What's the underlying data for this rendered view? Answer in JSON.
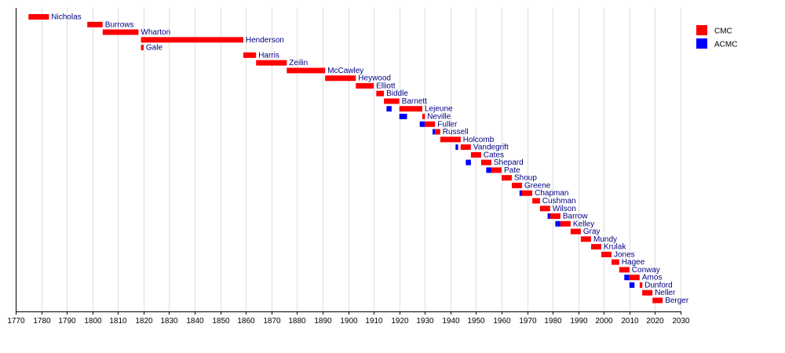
{
  "chart_data": {
    "type": "bar",
    "orientation": "horizontal-timeline",
    "title": "",
    "xlabel": "",
    "ylabel": "",
    "xlim": [
      1770,
      2030
    ],
    "x_ticks": [
      1770,
      1780,
      1790,
      1800,
      1810,
      1820,
      1830,
      1840,
      1850,
      1860,
      1870,
      1880,
      1890,
      1900,
      1910,
      1920,
      1930,
      1940,
      1950,
      1960,
      1970,
      1980,
      1990,
      2000,
      2010,
      2020,
      2030
    ],
    "grid": "vertical",
    "legend_position": "top-right",
    "series": [
      {
        "name": "CMC",
        "color": "#ff0000"
      },
      {
        "name": "ACMC",
        "color": "#0000ff"
      }
    ],
    "rows": [
      {
        "label": "Nicholas",
        "segments": [
          {
            "series": "CMC",
            "start": 1775,
            "end": 1783
          }
        ]
      },
      {
        "label": "Burrows",
        "segments": [
          {
            "series": "CMC",
            "start": 1798,
            "end": 1804
          }
        ]
      },
      {
        "label": "Wharton",
        "segments": [
          {
            "series": "CMC",
            "start": 1804,
            "end": 1818
          }
        ]
      },
      {
        "label": "Henderson",
        "segments": [
          {
            "series": "CMC",
            "start": 1819,
            "end": 1820
          },
          {
            "series": "CMC",
            "start": 1820,
            "end": 1859
          }
        ]
      },
      {
        "label": "Gale",
        "segments": [
          {
            "series": "CMC",
            "start": 1819,
            "end": 1820
          }
        ]
      },
      {
        "label": "Harris",
        "segments": [
          {
            "series": "CMC",
            "start": 1859,
            "end": 1864
          }
        ]
      },
      {
        "label": "Zeilin",
        "segments": [
          {
            "series": "CMC",
            "start": 1864,
            "end": 1876
          }
        ]
      },
      {
        "label": "McCawley",
        "segments": [
          {
            "series": "CMC",
            "start": 1876,
            "end": 1891
          }
        ]
      },
      {
        "label": "Heywood",
        "segments": [
          {
            "series": "CMC",
            "start": 1891,
            "end": 1903
          }
        ]
      },
      {
        "label": "Elliott",
        "segments": [
          {
            "series": "CMC",
            "start": 1903,
            "end": 1910
          }
        ]
      },
      {
        "label": "Biddle",
        "segments": [
          {
            "series": "CMC",
            "start": 1911,
            "end": 1914
          }
        ]
      },
      {
        "label": "Barnett",
        "segments": [
          {
            "series": "CMC",
            "start": 1914,
            "end": 1920
          }
        ]
      },
      {
        "label": "Lejeune",
        "segments": [
          {
            "series": "ACMC",
            "start": 1915,
            "end": 1917
          },
          {
            "series": "CMC",
            "start": 1920,
            "end": 1929
          }
        ]
      },
      {
        "label": "Neville",
        "segments": [
          {
            "series": "ACMC",
            "start": 1920,
            "end": 1923
          },
          {
            "series": "CMC",
            "start": 1929,
            "end": 1930
          }
        ]
      },
      {
        "label": "Fuller",
        "segments": [
          {
            "series": "ACMC",
            "start": 1928,
            "end": 1930
          },
          {
            "series": "CMC",
            "start": 1930,
            "end": 1934
          }
        ]
      },
      {
        "label": "Russell",
        "segments": [
          {
            "series": "ACMC",
            "start": 1933,
            "end": 1934
          },
          {
            "series": "CMC",
            "start": 1934,
            "end": 1936
          }
        ]
      },
      {
        "label": "Holcomb",
        "segments": [
          {
            "series": "CMC",
            "start": 1936,
            "end": 1944
          }
        ]
      },
      {
        "label": "Vandegrift",
        "segments": [
          {
            "series": "ACMC",
            "start": 1942,
            "end": 1943
          },
          {
            "series": "CMC",
            "start": 1944,
            "end": 1948
          }
        ]
      },
      {
        "label": "Cates",
        "segments": [
          {
            "series": "CMC",
            "start": 1948,
            "end": 1952
          }
        ]
      },
      {
        "label": "Shepard",
        "segments": [
          {
            "series": "ACMC",
            "start": 1946,
            "end": 1948
          },
          {
            "series": "CMC",
            "start": 1952,
            "end": 1956
          }
        ]
      },
      {
        "label": "Pate",
        "segments": [
          {
            "series": "ACMC",
            "start": 1954,
            "end": 1956
          },
          {
            "series": "CMC",
            "start": 1956,
            "end": 1960
          }
        ]
      },
      {
        "label": "Shoup",
        "segments": [
          {
            "series": "CMC",
            "start": 1960,
            "end": 1964
          }
        ]
      },
      {
        "label": "Greene",
        "segments": [
          {
            "series": "CMC",
            "start": 1964,
            "end": 1968
          }
        ]
      },
      {
        "label": "Chapman",
        "segments": [
          {
            "series": "ACMC",
            "start": 1967,
            "end": 1968
          },
          {
            "series": "CMC",
            "start": 1968,
            "end": 1972
          }
        ]
      },
      {
        "label": "Cushman",
        "segments": [
          {
            "series": "CMC",
            "start": 1972,
            "end": 1975
          }
        ]
      },
      {
        "label": "Wilson",
        "segments": [
          {
            "series": "CMC",
            "start": 1975,
            "end": 1979
          }
        ]
      },
      {
        "label": "Barrow",
        "segments": [
          {
            "series": "ACMC",
            "start": 1978,
            "end": 1979
          },
          {
            "series": "CMC",
            "start": 1979,
            "end": 1983
          }
        ]
      },
      {
        "label": "Kelley",
        "segments": [
          {
            "series": "ACMC",
            "start": 1981,
            "end": 1983
          },
          {
            "series": "CMC",
            "start": 1983,
            "end": 1987
          }
        ]
      },
      {
        "label": "Gray",
        "segments": [
          {
            "series": "CMC",
            "start": 1987,
            "end": 1991
          }
        ]
      },
      {
        "label": "Mundy",
        "segments": [
          {
            "series": "CMC",
            "start": 1991,
            "end": 1995
          }
        ]
      },
      {
        "label": "Krulak",
        "segments": [
          {
            "series": "CMC",
            "start": 1995,
            "end": 1999
          }
        ]
      },
      {
        "label": "Jones",
        "segments": [
          {
            "series": "CMC",
            "start": 1999,
            "end": 2003
          }
        ]
      },
      {
        "label": "Hagee",
        "segments": [
          {
            "series": "CMC",
            "start": 2003,
            "end": 2006
          }
        ]
      },
      {
        "label": "Conway",
        "segments": [
          {
            "series": "CMC",
            "start": 2006,
            "end": 2010
          }
        ]
      },
      {
        "label": "Amos",
        "segments": [
          {
            "series": "ACMC",
            "start": 2008,
            "end": 2010
          },
          {
            "series": "CMC",
            "start": 2010,
            "end": 2014
          }
        ]
      },
      {
        "label": "Dunford",
        "segments": [
          {
            "series": "ACMC",
            "start": 2010,
            "end": 2012
          },
          {
            "series": "CMC",
            "start": 2014,
            "end": 2015
          }
        ]
      },
      {
        "label": "Neller",
        "segments": [
          {
            "series": "CMC",
            "start": 2015,
            "end": 2019
          }
        ]
      },
      {
        "label": "Berger",
        "segments": [
          {
            "series": "CMC",
            "start": 2019,
            "end": 2023
          }
        ]
      }
    ]
  }
}
